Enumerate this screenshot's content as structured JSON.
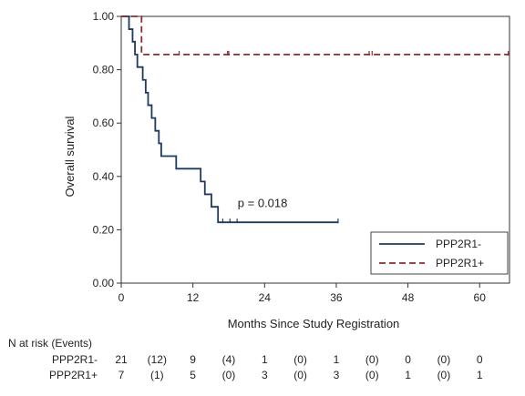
{
  "chart_data": {
    "type": "line",
    "xlabel": "Months Since Study Registration",
    "ylabel": "Overall survival",
    "xlim": [
      0,
      65
    ],
    "ylim": [
      0,
      1
    ],
    "x_ticks": [
      0,
      12,
      24,
      36,
      48,
      60
    ],
    "x_tick_labels": [
      "0",
      "12",
      "24",
      "36",
      "48",
      "60"
    ],
    "y_ticks": [
      0,
      0.2,
      0.4,
      0.6,
      0.8,
      1.0
    ],
    "y_tick_labels": [
      "0.00",
      "0.20",
      "0.40",
      "0.60",
      "0.80",
      "1.00"
    ],
    "grid": false,
    "legend_position": "bottom-right",
    "annotation": "p = 0.018",
    "annotation_at": {
      "x": 19.5,
      "y": 0.285
    },
    "series": [
      {
        "name": "PPP2R1-",
        "color": "#1f3a5f",
        "style": "solid",
        "steps": [
          [
            0,
            1.0
          ],
          [
            1.3,
            0.952
          ],
          [
            1.9,
            0.905
          ],
          [
            2.3,
            0.857
          ],
          [
            2.7,
            0.81
          ],
          [
            3.6,
            0.762
          ],
          [
            4.1,
            0.714
          ],
          [
            4.5,
            0.667
          ],
          [
            5.1,
            0.619
          ],
          [
            5.7,
            0.571
          ],
          [
            6.3,
            0.524
          ],
          [
            6.7,
            0.476
          ],
          [
            9.2,
            0.429
          ],
          [
            13.3,
            0.381
          ],
          [
            14.0,
            0.333
          ],
          [
            15.1,
            0.286
          ],
          [
            16.2,
            0.228
          ],
          [
            36.4,
            0.228
          ]
        ],
        "censored": [
          17.0,
          18.2,
          19.4,
          36.3
        ]
      },
      {
        "name": "PPP2R1+",
        "color": "#8b2d2d",
        "style": "dashed",
        "steps": [
          [
            0,
            1.0
          ],
          [
            3.4,
            1.0
          ],
          [
            3.4,
            0.857
          ],
          [
            65,
            0.857
          ]
        ],
        "censored": [
          9.7,
          17.8,
          18.0,
          41.5,
          42.0,
          64.8
        ]
      }
    ],
    "risk_table": {
      "header": "N at risk (Events)",
      "rows": [
        {
          "label": "PPP2R1-",
          "values": [
            "21",
            "(12)",
            "9",
            "(4)",
            "1",
            "(0)",
            "1",
            "(0)",
            "0",
            "(0)",
            "0"
          ]
        },
        {
          "label": "PPP2R1+",
          "values": [
            "7",
            "(1)",
            "5",
            "(0)",
            "3",
            "(0)",
            "3",
            "(0)",
            "1",
            "(0)",
            "1"
          ]
        }
      ]
    }
  }
}
